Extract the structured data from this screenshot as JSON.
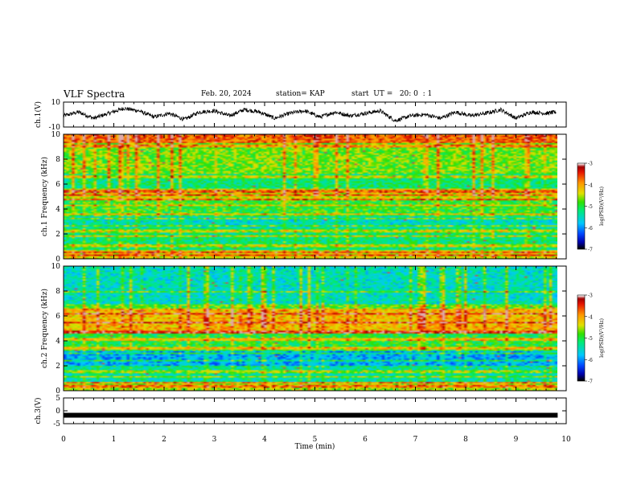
{
  "header": {
    "title": "VLF Spectra",
    "date": "Feb. 20, 2024",
    "station": "station= KAP",
    "start": "start  UT =   20: 0  : 1"
  },
  "chart_data": [
    {
      "type": "line",
      "panel": "ch1-waveform",
      "ylabel": "ch.1(V)",
      "ylim": [
        -10,
        10
      ],
      "yticks": [
        "10",
        "-10"
      ],
      "xlim": [
        0,
        10
      ],
      "series": [
        {
          "x": [
            0,
            0.3,
            0.6,
            0.9,
            1.2,
            1.5,
            1.8,
            2.1,
            2.4,
            2.7,
            3.0,
            3.3,
            3.6,
            3.9,
            4.2,
            4.5,
            4.8,
            5.1,
            5.4,
            5.7,
            6.0,
            6.3,
            6.6,
            6.9,
            7.2,
            7.5,
            7.8,
            8.1,
            8.4,
            8.7,
            9.0,
            9.3,
            9.6,
            9.8
          ],
          "values": [
            -1,
            2,
            -3,
            1,
            5,
            3,
            -2,
            1,
            -4,
            2,
            3,
            -1,
            4,
            2,
            -3,
            1,
            3,
            -2,
            2,
            -1,
            1,
            3,
            -5,
            -1,
            0,
            -3,
            2,
            -1,
            1,
            4,
            -3,
            2,
            1,
            2
          ]
        }
      ]
    },
    {
      "type": "heatmap",
      "panel": "ch1-spectrogram",
      "ylabel": "ch.1 Frequency (kHz)",
      "ylim": [
        0,
        10
      ],
      "yticks": [
        "0",
        "2",
        "4",
        "6",
        "8",
        "10"
      ],
      "xlim": [
        0,
        9.83
      ],
      "colorbar": {
        "label": "log(PSD)(V²/Hz)",
        "range": [
          -7,
          -3
        ],
        "ticks": [
          "-3",
          "-4",
          "-5",
          "-6",
          "-7"
        ]
      }
    },
    {
      "type": "heatmap",
      "panel": "ch2-spectrogram",
      "ylabel": "ch.2 Frequency (kHz)",
      "ylim": [
        0,
        10
      ],
      "yticks": [
        "0",
        "2",
        "4",
        "6",
        "8",
        "10"
      ],
      "xlim": [
        0,
        9.83
      ],
      "colorbar": {
        "label": "log(PSD)(V²/Hz)",
        "range": [
          -7,
          -3
        ],
        "ticks": [
          "-3",
          "-4",
          "-5",
          "-6",
          "-7"
        ]
      }
    },
    {
      "type": "line",
      "panel": "ch3-waveform",
      "ylabel": "ch.3(V)",
      "ylim": [
        -5,
        5
      ],
      "yticks": [
        "5",
        "0",
        "-5"
      ],
      "xlim": [
        0,
        10
      ],
      "series": [
        {
          "x": [
            0,
            9.83
          ],
          "values": [
            -1.7,
            -1.7
          ]
        }
      ]
    }
  ],
  "x_axis": {
    "label": "Time (min)",
    "ticks": [
      "0",
      "1",
      "2",
      "3",
      "4",
      "5",
      "6",
      "7",
      "8",
      "9",
      "10"
    ]
  }
}
